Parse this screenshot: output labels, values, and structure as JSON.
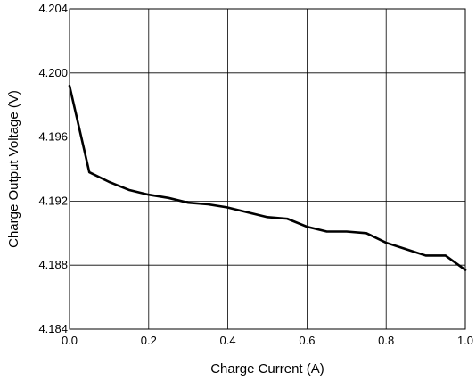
{
  "chart_data": {
    "type": "line",
    "title": "",
    "xlabel": "Charge Current (A)",
    "ylabel": "Charge Output Voltage (V)",
    "xlim": [
      0.0,
      1.0
    ],
    "ylim": [
      4.184,
      4.204
    ],
    "grid": true,
    "legend": "none",
    "x_ticks": [
      0.0,
      0.2,
      0.4,
      0.6,
      0.8,
      1.0
    ],
    "x_tick_labels": [
      "0.0",
      "0.2",
      "0.4",
      "0.6",
      "0.8",
      "1.0"
    ],
    "y_ticks": [
      4.184,
      4.188,
      4.192,
      4.196,
      4.2,
      4.204
    ],
    "y_tick_labels": [
      "4.184",
      "4.188",
      "4.192",
      "4.196",
      "4.200",
      "4.204"
    ],
    "series": [
      {
        "color": "#000000",
        "x": [
          0.0,
          0.05,
          0.1,
          0.15,
          0.2,
          0.25,
          0.3,
          0.35,
          0.4,
          0.45,
          0.5,
          0.55,
          0.6,
          0.65,
          0.7,
          0.75,
          0.8,
          0.85,
          0.9,
          0.95,
          1.0
        ],
        "y": [
          4.1992,
          4.1938,
          4.1932,
          4.1927,
          4.1924,
          4.1922,
          4.1919,
          4.1918,
          4.1916,
          4.1913,
          4.191,
          4.1909,
          4.1904,
          4.1901,
          4.1901,
          4.19,
          4.1894,
          4.189,
          4.1886,
          4.1886,
          4.1877
        ]
      }
    ]
  }
}
